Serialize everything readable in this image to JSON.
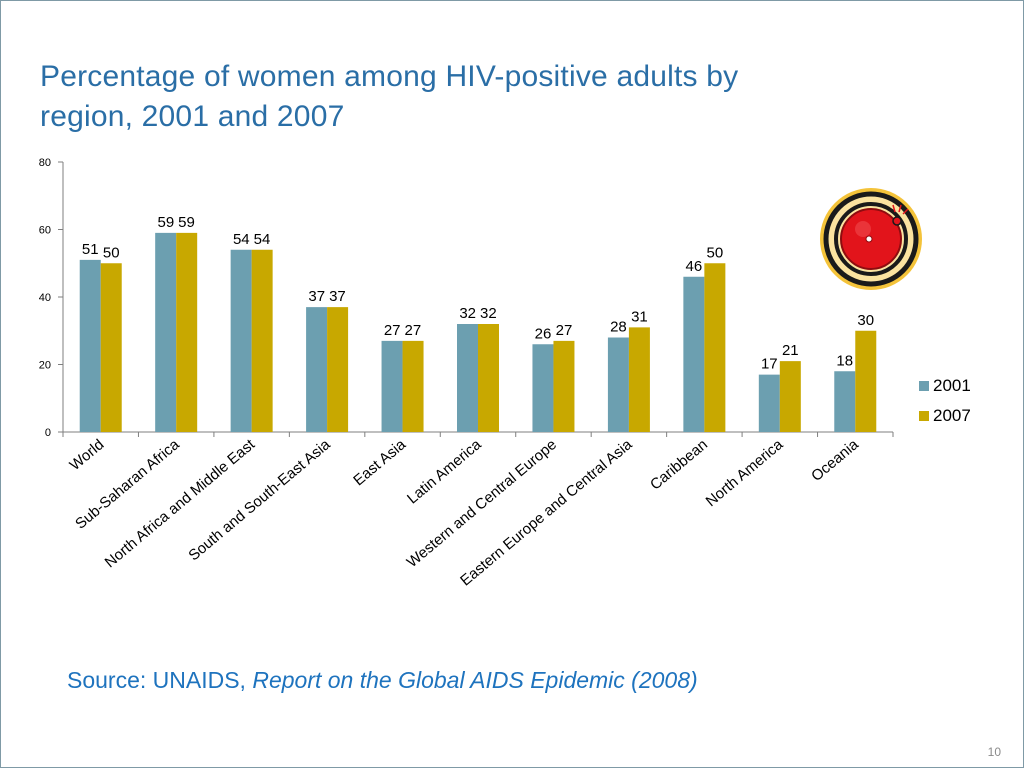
{
  "title_line1": "Percentage of women among HIV-positive adults by",
  "title_line2": "region, 2001 and 2007",
  "source_prefix": "Source: UNAIDS, ",
  "source_title": "Report on the Global AIDS Epidemic (2008)",
  "page_number": "10",
  "colors": {
    "series_2001": "#6c9fb0",
    "series_2007": "#c8a800",
    "title": "#2a6ea6",
    "source": "#1e73be"
  },
  "icon": "alarm-bell-icon",
  "chart_data": {
    "type": "bar",
    "title": "Percentage of women among HIV-positive adults by region, 2001 and 2007",
    "xlabel": "",
    "ylabel": "",
    "ylim": [
      0,
      80
    ],
    "yticks": [
      0,
      20,
      40,
      60,
      80
    ],
    "ytick_labels": [
      "0",
      "20",
      "40",
      "60",
      "80"
    ],
    "categories": [
      "World",
      "Sub-Saharan Africa",
      "North Africa and Middle East",
      "South and South-East Asia",
      "East Asia",
      "Latin America",
      "Western and Central Europe",
      "Eastern Europe and Central Asia",
      "Caribbean",
      "North America",
      "Oceania"
    ],
    "series": [
      {
        "name": "2001",
        "values": [
          51,
          59,
          54,
          37,
          27,
          32,
          26,
          28,
          46,
          17,
          18
        ]
      },
      {
        "name": "2007",
        "values": [
          50,
          59,
          54,
          37,
          27,
          32,
          27,
          31,
          50,
          21,
          30
        ]
      }
    ],
    "legend_position": "right"
  }
}
